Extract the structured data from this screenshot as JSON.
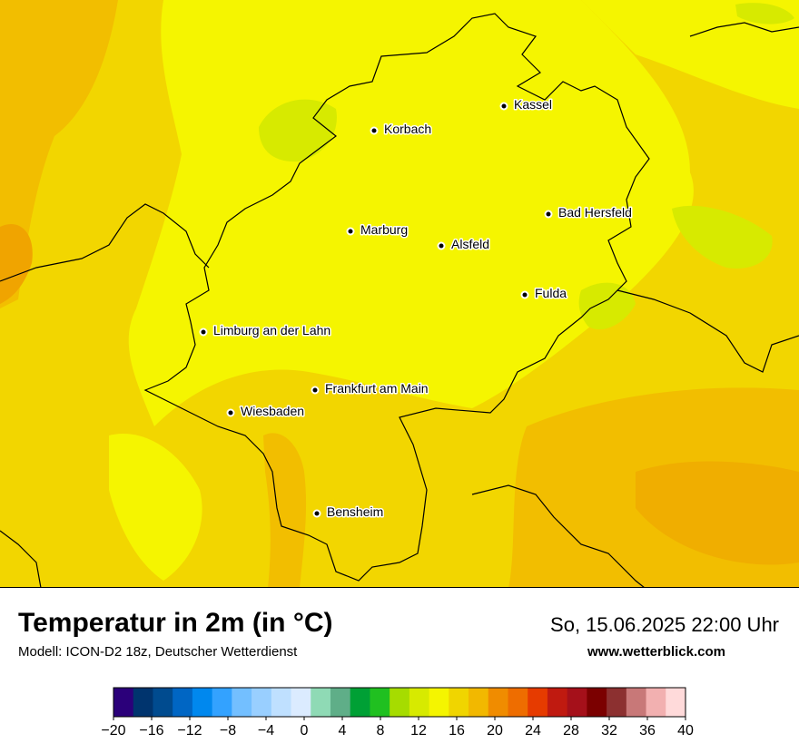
{
  "map": {
    "cities": [
      {
        "name": "Kassel"
      },
      {
        "name": "Korbach"
      },
      {
        "name": "Bad Hersfeld"
      },
      {
        "name": "Marburg"
      },
      {
        "name": "Alsfeld"
      },
      {
        "name": "Fulda"
      },
      {
        "name": "Limburg an der Lahn"
      },
      {
        "name": "Frankfurt am Main"
      },
      {
        "name": "Wiesbaden"
      },
      {
        "name": "Bensheim"
      }
    ]
  },
  "header": {
    "title": "Temperatur in 2m (in °C)",
    "subtitle": "Modell: ICON-D2 18z, Deutscher Wetterdienst",
    "datetime": "So, 15.06.2025 22:00 Uhr",
    "website": "www.wetterblick.com"
  },
  "legend": {
    "unit": "°C",
    "min": -20,
    "max": 40,
    "step": 2,
    "tick_labels": [
      "−20",
      "−16",
      "−12",
      "−8",
      "−4",
      "0",
      "4",
      "8",
      "12",
      "16",
      "20",
      "24",
      "28",
      "32",
      "36",
      "40"
    ],
    "colors": [
      "#2b007a",
      "#00346e",
      "#004b8f",
      "#0066c4",
      "#0088ee",
      "#33a2ff",
      "#73bfff",
      "#99cfff",
      "#bfe0ff",
      "#dbebff",
      "#8fdab5",
      "#5fae88",
      "#00a035",
      "#20c020",
      "#a6dc00",
      "#d7ea00",
      "#f5f500",
      "#f0d500",
      "#f2b800",
      "#f08c00",
      "#ee6d00",
      "#e63b00",
      "#c01a10",
      "#a5101a",
      "#7b0000",
      "#8c3030",
      "#c87878",
      "#f2b0b0",
      "#ffdada"
    ]
  }
}
